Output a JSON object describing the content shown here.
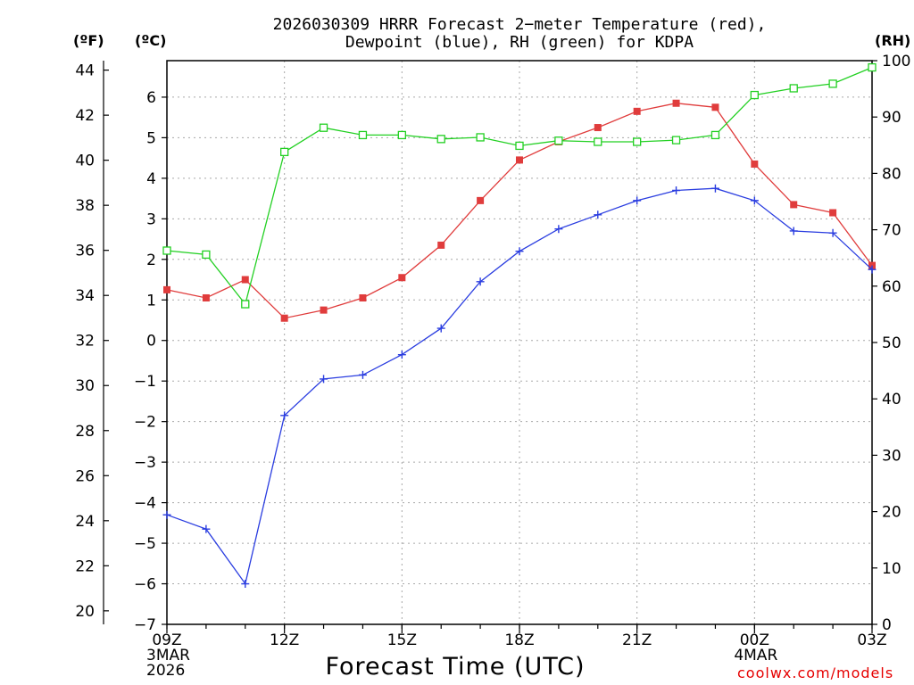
{
  "title": {
    "line1": "2026030309 HRRR Forecast 2−meter Temperature (red),",
    "line2": "Dewpoint (blue), RH (green) for KDPA"
  },
  "units": {
    "fahrenheit": "(ºF)",
    "celsius": "(ºC)",
    "rh": "(RH)"
  },
  "x_axis_title": "Forecast Time (UTC)",
  "credit": "coolwx.com/models",
  "colors": {
    "temperature": "#e03c3c",
    "dewpoint": "#2a3de0",
    "rh": "#22d022"
  },
  "chart_data": {
    "type": "line",
    "title": "2026030309 HRRR Forecast 2-meter Temperature (red), Dewpoint (blue), RH (green) for KDPA",
    "xlabel": "Forecast Time (UTC)",
    "x": [
      "09Z",
      "10Z",
      "11Z",
      "12Z",
      "13Z",
      "14Z",
      "15Z",
      "16Z",
      "17Z",
      "18Z",
      "19Z",
      "20Z",
      "21Z",
      "22Z",
      "23Z",
      "00Z",
      "01Z",
      "02Z",
      "03Z"
    ],
    "x_tick_labels": [
      {
        "at": "09Z",
        "lines": [
          "09Z",
          "3MAR",
          "2026"
        ]
      },
      {
        "at": "12Z",
        "lines": [
          "12Z"
        ]
      },
      {
        "at": "15Z",
        "lines": [
          "15Z"
        ]
      },
      {
        "at": "18Z",
        "lines": [
          "18Z"
        ]
      },
      {
        "at": "21Z",
        "lines": [
          "21Z"
        ]
      },
      {
        "at": "00Z",
        "lines": [
          "00Z",
          "4MAR"
        ]
      },
      {
        "at": "03Z",
        "lines": [
          "03Z"
        ]
      }
    ],
    "y_left_celsius": {
      "label": "(ºC)",
      "range": [
        -7,
        6.9
      ],
      "ticks": [
        -7,
        -6,
        -5,
        -4,
        -3,
        -2,
        -1,
        0,
        1,
        2,
        3,
        4,
        5,
        6
      ]
    },
    "y_left_fahrenheit": {
      "label": "(ºF)",
      "range": [
        19.4,
        44.42
      ],
      "ticks": [
        20,
        22,
        24,
        26,
        28,
        30,
        32,
        34,
        36,
        38,
        40,
        42,
        44
      ]
    },
    "y_right_rh": {
      "label": "(RH)",
      "range": [
        0,
        100
      ],
      "ticks": [
        0,
        10,
        20,
        30,
        40,
        50,
        60,
        70,
        80,
        90,
        100
      ]
    },
    "grid": true,
    "series": [
      {
        "name": "Temperature",
        "axis": "celsius",
        "marker": "filled-square",
        "values": [
          1.25,
          1.05,
          1.5,
          0.55,
          0.75,
          1.05,
          1.55,
          2.35,
          3.45,
          4.45,
          4.9,
          5.25,
          5.65,
          5.85,
          5.75,
          4.35,
          3.35,
          3.15,
          1.85
        ]
      },
      {
        "name": "Dewpoint",
        "axis": "celsius",
        "marker": "plus",
        "values": [
          -4.3,
          -4.65,
          -6.0,
          -1.85,
          -0.95,
          -0.85,
          -0.35,
          0.3,
          1.45,
          2.2,
          2.75,
          3.1,
          3.45,
          3.7,
          3.75,
          3.45,
          2.7,
          2.65,
          1.75
        ]
      },
      {
        "name": "RH",
        "axis": "rh",
        "marker": "open-square",
        "values": [
          66.3,
          65.6,
          56.8,
          83.8,
          88.1,
          86.8,
          86.8,
          86.1,
          86.4,
          84.9,
          85.8,
          85.6,
          85.6,
          85.9,
          86.8,
          93.9,
          95.1,
          95.9,
          98.8
        ]
      }
    ]
  }
}
